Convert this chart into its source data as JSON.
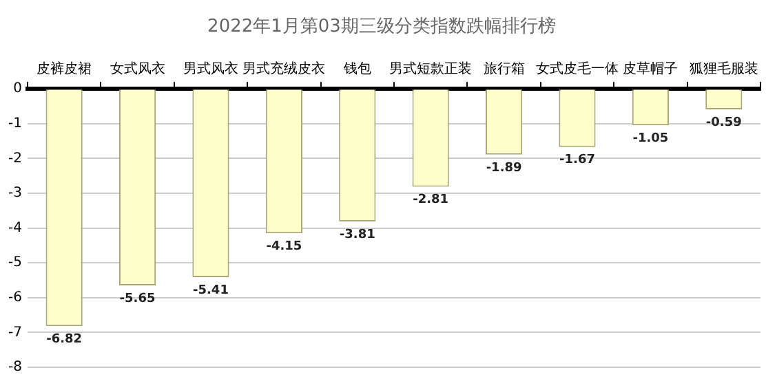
{
  "chart_data": {
    "type": "bar",
    "title": "2022年1月第03期三级分类指数跌幅排行榜",
    "categories": [
      "皮裤皮裙",
      "女式风衣",
      "男式风衣",
      "男式充绒皮衣",
      "钱包",
      "男式短款正装",
      "旅行箱",
      "女式皮毛一体",
      "皮草帽子",
      "狐狸毛服装"
    ],
    "values": [
      -6.82,
      -5.65,
      -5.41,
      -4.15,
      -3.81,
      -2.81,
      -1.89,
      -1.67,
      -1.05,
      -0.59
    ],
    "color": "#ffffcc",
    "ylim": [
      -8,
      0
    ],
    "yticks": [
      0,
      -1,
      -2,
      -3,
      -4,
      -5,
      -6,
      -7,
      -8
    ],
    "grid": "y",
    "data_labels": true,
    "legend": false
  }
}
